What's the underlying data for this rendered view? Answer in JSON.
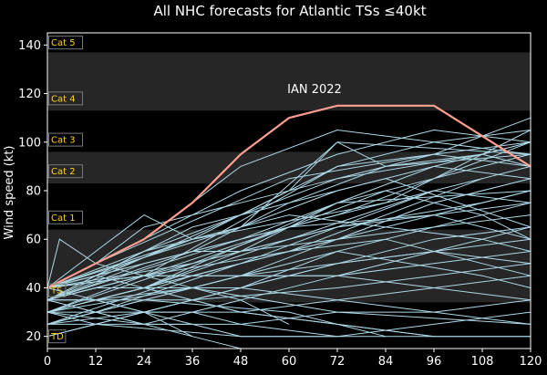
{
  "chart_data": {
    "type": "line",
    "title": "All NHC forecasts for Atlantic TSs ≤40kt",
    "xlabel": "",
    "ylabel": "Wind speed (kt)",
    "xlim": [
      0,
      120
    ],
    "ylim": [
      15,
      145
    ],
    "x_ticks": [
      0,
      12,
      24,
      36,
      48,
      60,
      72,
      84,
      96,
      108,
      120
    ],
    "y_ticks": [
      20,
      40,
      60,
      80,
      100,
      120,
      140
    ],
    "grid": false,
    "category_bands": [
      {
        "label": "TD",
        "from": 15,
        "to": 34,
        "shade": "light",
        "label_value": 20
      },
      {
        "label": "TS",
        "from": 34,
        "to": 64,
        "shade": "dark",
        "label_value": 39
      },
      {
        "label": "Cat 1",
        "from": 64,
        "to": 83,
        "shade": "light",
        "label_value": 69
      },
      {
        "label": "Cat 2",
        "from": 83,
        "to": 96,
        "shade": "dark",
        "label_value": 88
      },
      {
        "label": "Cat 3",
        "from": 96,
        "to": 113,
        "shade": "light",
        "label_value": 101
      },
      {
        "label": "Cat 4",
        "from": 113,
        "to": 137,
        "shade": "dark",
        "label_value": 118
      },
      {
        "label": "Cat 5",
        "from": 137,
        "to": 145,
        "shade": "light",
        "label_value": 141
      }
    ],
    "band_colors": {
      "light": "#000000",
      "dark": "#262626"
    },
    "series_color": "#add8e6",
    "highlight_color": "#ff9f8f",
    "highlight": {
      "name": "IAN 2022",
      "x": [
        0,
        12,
        24,
        36,
        48,
        60,
        72,
        84,
        96,
        120
      ],
      "y": [
        40,
        50,
        60,
        75,
        95,
        110,
        115,
        115,
        115,
        90
      ]
    },
    "annotation": {
      "text": "IAN 2022",
      "x": 60,
      "y": 122
    },
    "series": [
      {
        "x": [
          0,
          12,
          24,
          36,
          48,
          72,
          96,
          120
        ],
        "y": [
          40,
          50,
          60,
          75,
          90,
          105,
          100,
          95
        ]
      },
      {
        "x": [
          0,
          12,
          24,
          36,
          48,
          72,
          96,
          120
        ],
        "y": [
          40,
          50,
          65,
          70,
          75,
          85,
          95,
          110
        ]
      },
      {
        "x": [
          0,
          12,
          24,
          36,
          48,
          72,
          96,
          120
        ],
        "y": [
          40,
          45,
          55,
          65,
          70,
          90,
          100,
          105
        ]
      },
      {
        "x": [
          0,
          12,
          24,
          36,
          48,
          72,
          96,
          120
        ],
        "y": [
          35,
          45,
          55,
          60,
          65,
          80,
          90,
          100
        ]
      },
      {
        "x": [
          0,
          12,
          24,
          36,
          48,
          72,
          96,
          120
        ],
        "y": [
          40,
          45,
          50,
          55,
          60,
          70,
          85,
          95
        ]
      },
      {
        "x": [
          0,
          12,
          24,
          36,
          48,
          72,
          96,
          120
        ],
        "y": [
          40,
          45,
          50,
          55,
          55,
          60,
          75,
          85
        ]
      },
      {
        "x": [
          0,
          12,
          24,
          36,
          48,
          72,
          96,
          120
        ],
        "y": [
          35,
          40,
          45,
          50,
          55,
          65,
          70,
          80
        ]
      },
      {
        "x": [
          0,
          12,
          24,
          36,
          48,
          72,
          96,
          120
        ],
        "y": [
          35,
          40,
          45,
          45,
          50,
          60,
          65,
          75
        ]
      },
      {
        "x": [
          0,
          12,
          24,
          36,
          48,
          72,
          96,
          120
        ],
        "y": [
          35,
          35,
          40,
          45,
          45,
          50,
          55,
          60
        ]
      },
      {
        "x": [
          0,
          12,
          24,
          36,
          48,
          72,
          96,
          120
        ],
        "y": [
          30,
          35,
          35,
          40,
          45,
          45,
          50,
          55
        ]
      },
      {
        "x": [
          0,
          12,
          24,
          36,
          48,
          72,
          96,
          120
        ],
        "y": [
          30,
          35,
          40,
          40,
          40,
          35,
          30,
          25
        ]
      },
      {
        "x": [
          0,
          12,
          24,
          36,
          48,
          72,
          96,
          120
        ],
        "y": [
          35,
          40,
          40,
          35,
          30,
          25,
          20,
          20
        ]
      },
      {
        "x": [
          0,
          12,
          24,
          36,
          48,
          72,
          96,
          120
        ],
        "y": [
          30,
          30,
          35,
          35,
          30,
          25,
          20,
          20
        ]
      },
      {
        "x": [
          0,
          12,
          24,
          36,
          48,
          72,
          96
        ],
        "y": [
          25,
          25,
          30,
          30,
          25,
          20,
          20
        ]
      },
      {
        "x": [
          0,
          12,
          24,
          36,
          48,
          72
        ],
        "y": [
          25,
          30,
          30,
          25,
          20,
          20
        ]
      },
      {
        "x": [
          0,
          12,
          24,
          36,
          48
        ],
        "y": [
          20,
          25,
          25,
          20,
          15
        ]
      },
      {
        "x": [
          0,
          3,
          12,
          24
        ],
        "y": [
          40,
          60,
          50,
          45
        ]
      },
      {
        "x": [
          0,
          12,
          24,
          36
        ],
        "y": [
          40,
          55,
          70,
          60
        ]
      },
      {
        "x": [
          0,
          12,
          24,
          48,
          72,
          96,
          120
        ],
        "y": [
          40,
          50,
          60,
          80,
          95,
          105,
          100
        ]
      },
      {
        "x": [
          0,
          12,
          36,
          60,
          72,
          84,
          120
        ],
        "y": [
          35,
          45,
          60,
          80,
          100,
          90,
          95
        ]
      },
      {
        "x": [
          0,
          24,
          48,
          72,
          96,
          120
        ],
        "y": [
          30,
          40,
          55,
          75,
          85,
          100
        ]
      },
      {
        "x": [
          0,
          24,
          48,
          72,
          96,
          120
        ],
        "y": [
          25,
          35,
          45,
          60,
          75,
          85
        ]
      },
      {
        "x": [
          0,
          24,
          48,
          72,
          96,
          120
        ],
        "y": [
          20,
          30,
          40,
          55,
          65,
          70
        ]
      },
      {
        "x": [
          0,
          24,
          48,
          72,
          96,
          120
        ],
        "y": [
          30,
          25,
          35,
          45,
          55,
          65
        ]
      },
      {
        "x": [
          0,
          12,
          24,
          48,
          72,
          96,
          120
        ],
        "y": [
          40,
          35,
          30,
          30,
          35,
          40,
          45
        ]
      },
      {
        "x": [
          0,
          12,
          24,
          48,
          72,
          96,
          120
        ],
        "y": [
          35,
          30,
          25,
          25,
          30,
          30,
          35
        ]
      },
      {
        "x": [
          0,
          12,
          48,
          72,
          96,
          120
        ],
        "y": [
          30,
          25,
          20,
          20,
          25,
          30
        ]
      },
      {
        "x": [
          0,
          12,
          36,
          72,
          96,
          120
        ],
        "y": [
          40,
          45,
          35,
          40,
          45,
          50
        ]
      },
      {
        "x": [
          0,
          24,
          48,
          72,
          96,
          120
        ],
        "y": [
          35,
          50,
          60,
          70,
          80,
          90
        ]
      },
      {
        "x": [
          0,
          24,
          48,
          72,
          108,
          120
        ],
        "y": [
          40,
          55,
          70,
          85,
          95,
          90
        ]
      },
      {
        "x": [
          0,
          36,
          60,
          84,
          108,
          120
        ],
        "y": [
          35,
          55,
          75,
          90,
          95,
          100
        ]
      },
      {
        "x": [
          0,
          36,
          60,
          84,
          108,
          120
        ],
        "y": [
          30,
          50,
          65,
          80,
          70,
          60
        ]
      },
      {
        "x": [
          0,
          36,
          60,
          84,
          108,
          120
        ],
        "y": [
          25,
          45,
          55,
          60,
          50,
          45
        ]
      },
      {
        "x": [
          0,
          36,
          60,
          84,
          108,
          120
        ],
        "y": [
          40,
          60,
          70,
          65,
          60,
          55
        ]
      },
      {
        "x": [
          0,
          24,
          60,
          96,
          120
        ],
        "y": [
          30,
          40,
          60,
          80,
          75
        ]
      },
      {
        "x": [
          0,
          24,
          60,
          96,
          120
        ],
        "y": [
          35,
          45,
          65,
          70,
          60
        ]
      },
      {
        "x": [
          0,
          12,
          60,
          96,
          120
        ],
        "y": [
          40,
          50,
          85,
          95,
          90
        ]
      },
      {
        "x": [
          0,
          24,
          72,
          120
        ],
        "y": [
          35,
          45,
          90,
          100
        ]
      },
      {
        "x": [
          0,
          24,
          72,
          120
        ],
        "y": [
          30,
          40,
          75,
          80
        ]
      },
      {
        "x": [
          0,
          48,
          72,
          120
        ],
        "y": [
          40,
          65,
          100,
          95
        ]
      },
      {
        "x": [
          0,
          48,
          84,
          120
        ],
        "y": [
          35,
          70,
          85,
          65
        ]
      },
      {
        "x": [
          0,
          12,
          48,
          96
        ],
        "y": [
          25,
          30,
          50,
          80
        ]
      },
      {
        "x": [
          0,
          12,
          48,
          96,
          120
        ],
        "y": [
          20,
          25,
          40,
          60,
          65
        ]
      },
      {
        "x": [
          0,
          24,
          72,
          96,
          120
        ],
        "y": [
          25,
          30,
          50,
          55,
          50
        ]
      },
      {
        "x": [
          0,
          24,
          72,
          96,
          120
        ],
        "y": [
          40,
          45,
          45,
          40,
          35
        ]
      },
      {
        "x": [
          0,
          12,
          36,
          72,
          120
        ],
        "y": [
          35,
          35,
          40,
          30,
          25
        ]
      },
      {
        "x": [
          0,
          24,
          60,
          108
        ],
        "y": [
          30,
          45,
          55,
          85
        ]
      },
      {
        "x": [
          0,
          36,
          84,
          120
        ],
        "y": [
          40,
          60,
          75,
          105
        ]
      },
      {
        "x": [
          0,
          48,
          96,
          120
        ],
        "y": [
          35,
          60,
          90,
          85
        ]
      },
      {
        "x": [
          0,
          48,
          96,
          120
        ],
        "y": [
          30,
          50,
          70,
          75
        ]
      },
      {
        "x": [
          0,
          12,
          24,
          36
        ],
        "y": [
          30,
          35,
          30,
          20
        ]
      },
      {
        "x": [
          0,
          12,
          24,
          36
        ],
        "y": [
          35,
          30,
          25,
          25
        ]
      },
      {
        "x": [
          0,
          24,
          48,
          60
        ],
        "y": [
          40,
          45,
          35,
          25
        ]
      },
      {
        "x": [
          0,
          24,
          60,
          84
        ],
        "y": [
          25,
          35,
          30,
          20
        ]
      },
      {
        "x": [
          0,
          36,
          72,
          108,
          120
        ],
        "y": [
          40,
          50,
          65,
          75,
          80
        ]
      },
      {
        "x": [
          0,
          36,
          72,
          108,
          120
        ],
        "y": [
          30,
          40,
          55,
          45,
          40
        ]
      }
    ]
  }
}
